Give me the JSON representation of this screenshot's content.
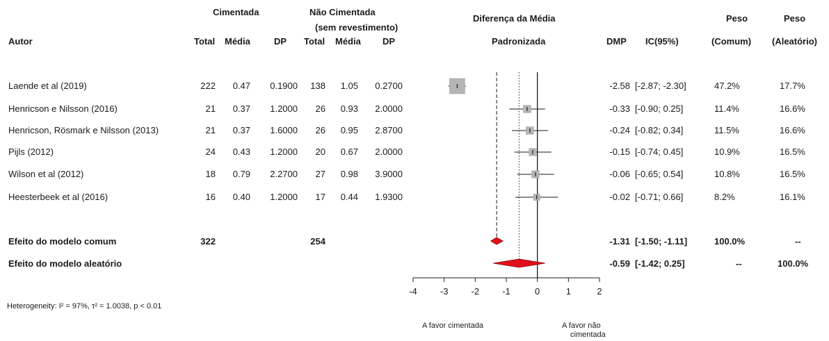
{
  "header": {
    "cimentada": "Cimentada",
    "nao_cimentada_1": "Não Cimentada",
    "nao_cimentada_2": "(sem revestimento)",
    "autor": "Autor",
    "total": "Total",
    "media": "Média",
    "dp": "DP",
    "diferenca_1": "Diferença da Média",
    "diferenca_2": "Padronizada",
    "dmp": "DMP",
    "ic": "IC(95%)",
    "peso": "Peso",
    "comum": "(Comum)",
    "aleatorio": "(Aleatório)"
  },
  "studies": [
    {
      "author": "Laende et al (2019)",
      "c_total": "222",
      "c_media": "0.47",
      "c_dp": "0.1900",
      "n_total": "138",
      "n_media": "1.05",
      "n_dp": "0.2700",
      "dmp": "-2.58",
      "ic": "[-2.87; -2.30]",
      "peso_comum": "47.2%",
      "peso_aleatorio": "17.7%"
    },
    {
      "author": "Henricson e Nilsson (2016)",
      "c_total": "21",
      "c_media": "0.37",
      "c_dp": "1.2000",
      "n_total": "26",
      "n_media": "0.93",
      "n_dp": "2.0000",
      "dmp": "-0.33",
      "ic": "[-0.90;  0.25]",
      "peso_comum": "11.4%",
      "peso_aleatorio": "16.6%"
    },
    {
      "author": "Henricson, Rösmark e Nilsson (2013)",
      "c_total": "21",
      "c_media": "0.37",
      "c_dp": "1.6000",
      "n_total": "26",
      "n_media": "0.95",
      "n_dp": "2.8700",
      "dmp": "-0.24",
      "ic": "[-0.82;  0.34]",
      "peso_comum": "11.5%",
      "peso_aleatorio": "16.6%"
    },
    {
      "author": "Pijls (2012)",
      "c_total": "24",
      "c_media": "0.43",
      "c_dp": "1.2000",
      "n_total": "20",
      "n_media": "0.67",
      "n_dp": "2.0000",
      "dmp": "-0.15",
      "ic": "[-0.74;  0.45]",
      "peso_comum": "10.9%",
      "peso_aleatorio": "16.5%"
    },
    {
      "author": "Wilson et al (2012)",
      "c_total": "18",
      "c_media": "0.79",
      "c_dp": "2.2700",
      "n_total": "27",
      "n_media": "0.98",
      "n_dp": "3.9000",
      "dmp": "-0.06",
      "ic": "[-0.65;  0.54]",
      "peso_comum": "10.8%",
      "peso_aleatorio": "16.5%"
    },
    {
      "author": "Heesterbeek et al (2016)",
      "c_total": "16",
      "c_media": "0.40",
      "c_dp": "1.2000",
      "n_total": "17",
      "n_media": "0.44",
      "n_dp": "1.9300",
      "dmp": "-0.02",
      "ic": "[-0.71;  0.66]",
      "peso_comum": "8.2%",
      "peso_aleatorio": "16.1%"
    }
  ],
  "summary": {
    "common_label": "Efeito do modelo comum",
    "common_c_total": "322",
    "common_n_total": "254",
    "common_dmp": "-1.31",
    "common_ic": "[-1.50; -1.11]",
    "common_peso_comum": "100.0%",
    "common_peso_aleatorio": "--",
    "random_label": "Efeito do modelo aleatório",
    "random_dmp": "-0.59",
    "random_ic": "[-1.42;  0.25]",
    "random_peso_comum": "--",
    "random_peso_aleatorio": "100.0%"
  },
  "footer": {
    "heterogeneity": "Heterogeneity: I² = 97%, τ² = 1.0038, p < 0.01",
    "favor_left": "A favor cimentada",
    "favor_right_1": "A favor não",
    "favor_right_2": "cimentada"
  },
  "colors": {
    "diamond": "#e0101e",
    "box": "#b5b5b5",
    "line": "#1a1a1a"
  },
  "chart_data": {
    "type": "forest",
    "xlim": [
      -4,
      2
    ],
    "ticks": [
      -4,
      -3,
      -2,
      -1,
      0,
      1,
      2
    ],
    "studies": [
      {
        "est": -2.58,
        "lo": -2.87,
        "hi": -2.3,
        "weight": 47.2
      },
      {
        "est": -0.33,
        "lo": -0.9,
        "hi": 0.25,
        "weight": 11.4
      },
      {
        "est": -0.24,
        "lo": -0.82,
        "hi": 0.34,
        "weight": 11.5
      },
      {
        "est": -0.15,
        "lo": -0.74,
        "hi": 0.45,
        "weight": 10.9
      },
      {
        "est": -0.06,
        "lo": -0.65,
        "hi": 0.54,
        "weight": 10.8
      },
      {
        "est": -0.02,
        "lo": -0.71,
        "hi": 0.66,
        "weight": 8.2
      }
    ],
    "common": {
      "est": -1.31,
      "lo": -1.5,
      "hi": -1.11
    },
    "random": {
      "est": -0.59,
      "lo": -1.42,
      "hi": 0.25
    }
  }
}
